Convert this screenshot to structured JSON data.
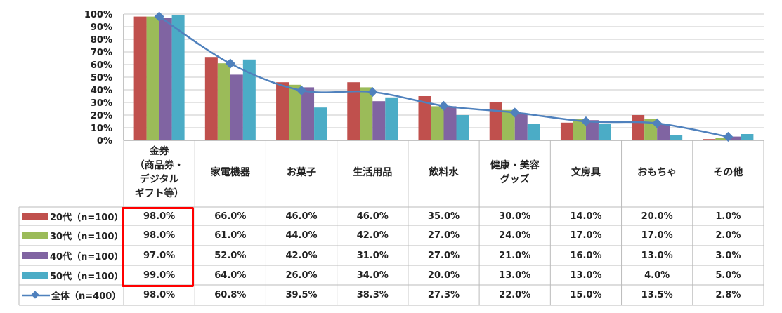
{
  "chart_data": {
    "type": "bar",
    "title": "",
    "xlabel": "",
    "ylabel": "",
    "ylim": [
      0,
      100
    ],
    "yticks": [
      "0%",
      "10%",
      "20%",
      "30%",
      "40%",
      "50%",
      "60%",
      "70%",
      "80%",
      "90%",
      "100%"
    ],
    "grid": true,
    "legend": "table-left",
    "categories": [
      "金券\n（商品券・\nデジタル\nギフト等）",
      "家電機器",
      "お菓子",
      "生活用品",
      "飲料水",
      "健康・美容\nグッズ",
      "文房具",
      "おもちゃ",
      "その他"
    ],
    "series": [
      {
        "name": "20代（n=100）",
        "kind": "bar",
        "color": "#C0504D",
        "values": [
          98,
          66,
          46,
          46,
          35,
          30,
          14,
          20,
          1
        ],
        "labels": [
          "98.0%",
          "66.0%",
          "46.0%",
          "46.0%",
          "35.0%",
          "30.0%",
          "14.0%",
          "20.0%",
          "1.0%"
        ]
      },
      {
        "name": "30代（n=100）",
        "kind": "bar",
        "color": "#9BBB59",
        "values": [
          98,
          61,
          44,
          42,
          27,
          24,
          17,
          17,
          2
        ],
        "labels": [
          "98.0%",
          "61.0%",
          "44.0%",
          "42.0%",
          "27.0%",
          "24.0%",
          "17.0%",
          "17.0%",
          "2.0%"
        ]
      },
      {
        "name": "40代（n=100）",
        "kind": "bar",
        "color": "#8064A2",
        "values": [
          97,
          52,
          42,
          31,
          27,
          21,
          16,
          13,
          3
        ],
        "labels": [
          "97.0%",
          "52.0%",
          "42.0%",
          "31.0%",
          "27.0%",
          "21.0%",
          "16.0%",
          "13.0%",
          "3.0%"
        ]
      },
      {
        "name": "50代（n=100）",
        "kind": "bar",
        "color": "#4BACC6",
        "values": [
          99,
          64,
          26,
          34,
          20,
          13,
          13,
          4,
          5
        ],
        "labels": [
          "99.0%",
          "64.0%",
          "26.0%",
          "34.0%",
          "20.0%",
          "13.0%",
          "13.0%",
          "4.0%",
          "5.0%"
        ]
      },
      {
        "name": "全体（n=400）",
        "kind": "line",
        "color": "#4F81BD",
        "values": [
          98,
          60.8,
          39.5,
          38.3,
          27.3,
          22,
          15,
          13.5,
          2.8
        ],
        "labels": [
          "98.0%",
          "60.8%",
          "39.5%",
          "38.3%",
          "27.3%",
          "22.0%",
          "15.0%",
          "13.5%",
          "2.8%"
        ]
      }
    ],
    "highlight_color": "#FF0000"
  }
}
